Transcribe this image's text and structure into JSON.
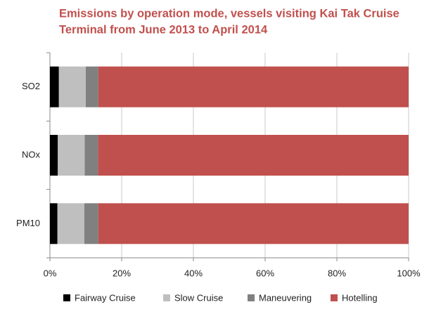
{
  "chart_data": {
    "type": "stacked_barh",
    "title": [
      "Emissions by operation mode, vessels visiting Kai Tak Cruise",
      "Terminal from June 2013 to April 2014"
    ],
    "categories": [
      "SO2",
      "NOx",
      "PM10"
    ],
    "series": [
      {
        "name": "Fairway Cruise",
        "color": "#000000",
        "values": [
          2.5,
          2.2,
          2.1
        ]
      },
      {
        "name": "Slow Cruise",
        "color": "#bfbfbf",
        "values": [
          7.5,
          7.5,
          7.5
        ]
      },
      {
        "name": "Maneuvering",
        "color": "#808080",
        "values": [
          3.5,
          3.7,
          3.9
        ]
      },
      {
        "name": "Hotelling",
        "color": "#c0504d",
        "values": [
          86.5,
          86.6,
          86.5
        ]
      }
    ],
    "xlim": [
      0,
      100
    ],
    "xticks": [
      {
        "value": 0,
        "label": "0%"
      },
      {
        "value": 20,
        "label": "20%"
      },
      {
        "value": 40,
        "label": "40%"
      },
      {
        "value": 60,
        "label": "60%"
      },
      {
        "value": 80,
        "label": "80%"
      },
      {
        "value": 100,
        "label": "100%"
      }
    ],
    "grid": true,
    "legend": "bottom"
  }
}
